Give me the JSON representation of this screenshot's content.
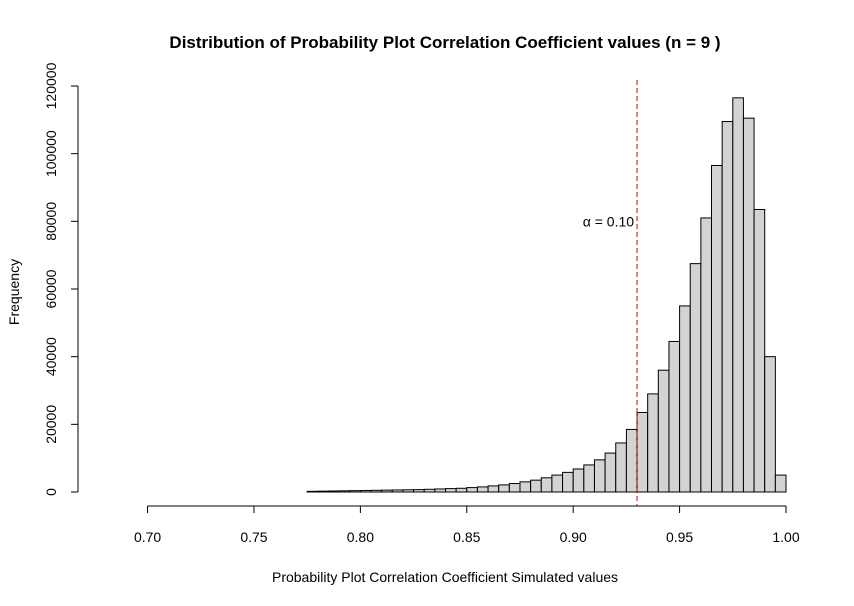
{
  "chart_data": {
    "type": "bar",
    "title": "Distribution of Probability Plot Correlation Coefficient values (n = 9 )",
    "xlabel": "Probability Plot Correlation Coefficient Simulated values",
    "ylabel": "Frequency",
    "xlim": [
      0.68,
      1.0
    ],
    "ylim": [
      0,
      120000
    ],
    "x_ticks": [
      0.7,
      0.75,
      0.8,
      0.85,
      0.9,
      0.95,
      1.0
    ],
    "x_tick_labels": [
      "0.70",
      "0.75",
      "0.80",
      "0.85",
      "0.90",
      "0.95",
      "1.00"
    ],
    "y_ticks": [
      0,
      20000,
      40000,
      60000,
      80000,
      100000,
      120000
    ],
    "y_tick_labels": [
      "0",
      "20000",
      "40000",
      "60000",
      "80000",
      "100000",
      "120000"
    ],
    "bin_width": 0.005,
    "bin_starts": [
      0.68,
      0.685,
      0.69,
      0.695,
      0.7,
      0.705,
      0.71,
      0.715,
      0.72,
      0.725,
      0.73,
      0.735,
      0.74,
      0.745,
      0.75,
      0.755,
      0.76,
      0.765,
      0.77,
      0.775,
      0.78,
      0.785,
      0.79,
      0.795,
      0.8,
      0.805,
      0.81,
      0.815,
      0.82,
      0.825,
      0.83,
      0.835,
      0.84,
      0.845,
      0.85,
      0.855,
      0.86,
      0.865,
      0.87,
      0.875,
      0.88,
      0.885,
      0.89,
      0.895,
      0.9,
      0.905,
      0.91,
      0.915,
      0.92,
      0.925,
      0.93,
      0.935,
      0.94,
      0.945,
      0.95,
      0.955,
      0.96,
      0.965,
      0.97,
      0.975,
      0.98,
      0.985,
      0.99,
      0.995
    ],
    "values": [
      0,
      0,
      0,
      0,
      0,
      0,
      0,
      0,
      0,
      0,
      0,
      0,
      0,
      0,
      0,
      0,
      0,
      0,
      0,
      200,
      250,
      300,
      350,
      400,
      450,
      500,
      550,
      600,
      650,
      700,
      800,
      900,
      1000,
      1100,
      1300,
      1500,
      1800,
      2100,
      2500,
      3000,
      3500,
      4200,
      5000,
      5800,
      6800,
      8000,
      9500,
      11500,
      14500,
      18500,
      23500,
      29000,
      36000,
      44500,
      55000,
      67500,
      81000,
      96500,
      109500,
      116500,
      110500,
      83500,
      40000,
      5000
    ],
    "annotations": [
      {
        "type": "vline",
        "x": 0.93,
        "color": "#cc0000",
        "style": "dashed"
      },
      {
        "type": "text",
        "text": "α = 0.10",
        "x": 0.93,
        "y": 80000
      }
    ]
  }
}
